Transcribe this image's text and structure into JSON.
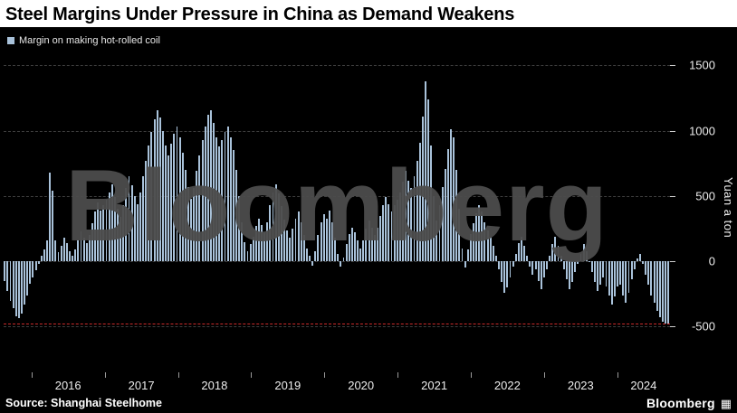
{
  "title": "Steel Margins Under Pressure in China as Demand Weakens",
  "legend_label": "Margin on making hot-rolled coil",
  "watermark": "Bloomberg",
  "source": "Source: Shanghai Steelhome",
  "brand": "Bloomberg",
  "qr_icon_glyph": "▦",
  "colors": {
    "background": "#000000",
    "title_bar": "#ffffff",
    "bar": "#a9c2da",
    "gridline": "#3e3e3e",
    "reference_line": "#cc2a2a",
    "axis_text": "#ededed",
    "watermark": "#4c4c4c"
  },
  "chart_data": {
    "type": "bar",
    "title": "Steel Margins Under Pressure in China as Demand Weakens",
    "legend": [
      "Margin on making hot-rolled coil"
    ],
    "ylabel": "Yuan a ton",
    "xlabel": "",
    "grid": "horizontal-dashed",
    "legend_position": "top-left",
    "ylim": [
      -850,
      1600
    ],
    "y_ticks": [
      1500,
      1000,
      500,
      0,
      -500
    ],
    "x_start": 2015.62,
    "x_end": 2024.72,
    "x_ticks": [
      2016,
      2017,
      2018,
      2019,
      2020,
      2021,
      2022,
      2023,
      2024
    ],
    "x_tick_labels": [
      "2016",
      "2017",
      "2018",
      "2019",
      "2020",
      "2021",
      "2022",
      "2023",
      "2024"
    ],
    "reference_line": {
      "value": -475,
      "color": "#cc2a2a",
      "style": "dashed"
    },
    "unit": "yuan per ton",
    "frequency": "approximately biweekly, mid-2015 to late 2024",
    "values": [
      -150,
      -230,
      -300,
      -360,
      -420,
      -435,
      -400,
      -330,
      -260,
      -170,
      -120,
      -70,
      -20,
      40,
      90,
      160,
      680,
      540,
      160,
      70,
      120,
      180,
      140,
      80,
      40,
      90,
      160,
      230,
      180,
      140,
      200,
      290,
      380,
      450,
      390,
      430,
      470,
      530,
      590,
      490,
      400,
      340,
      430,
      560,
      650,
      580,
      500,
      440,
      530,
      650,
      770,
      890,
      990,
      1090,
      1160,
      1100,
      1000,
      890,
      810,
      900,
      980,
      1030,
      950,
      830,
      700,
      570,
      480,
      560,
      690,
      810,
      930,
      1030,
      1120,
      1160,
      1060,
      950,
      880,
      930,
      990,
      1030,
      950,
      850,
      700,
      500,
      300,
      150,
      80,
      130,
      190,
      270,
      330,
      280,
      220,
      300,
      430,
      530,
      590,
      520,
      420,
      320,
      240,
      180,
      250,
      330,
      380,
      300,
      200,
      100,
      40,
      -30,
      80,
      200,
      300,
      360,
      330,
      390,
      300,
      180,
      60,
      -40,
      30,
      130,
      210,
      260,
      220,
      160,
      100,
      160,
      250,
      310,
      260,
      200,
      260,
      350,
      430,
      490,
      440,
      380,
      430,
      470,
      530,
      610,
      690,
      620,
      560,
      650,
      770,
      910,
      1110,
      1380,
      1240,
      890,
      500,
      310,
      430,
      570,
      710,
      860,
      1010,
      950,
      700,
      400,
      100,
      -50,
      90,
      210,
      290,
      370,
      430,
      380,
      300,
      240,
      180,
      120,
      40,
      -60,
      -160,
      -240,
      -200,
      -120,
      -40,
      60,
      140,
      190,
      120,
      40,
      -40,
      -100,
      -60,
      -150,
      -210,
      -120,
      -60,
      40,
      130,
      190,
      120,
      40,
      -60,
      -140,
      -210,
      -160,
      -80,
      -20,
      60,
      130,
      80,
      0,
      -80,
      -160,
      -230,
      -180,
      -120,
      -190,
      -260,
      -330,
      -270,
      -190,
      -180,
      -260,
      -320,
      -240,
      -140,
      -60,
      20,
      60,
      -20,
      -100,
      -180,
      -260,
      -320,
      -380,
      -430,
      -460,
      -475,
      -485
    ]
  }
}
